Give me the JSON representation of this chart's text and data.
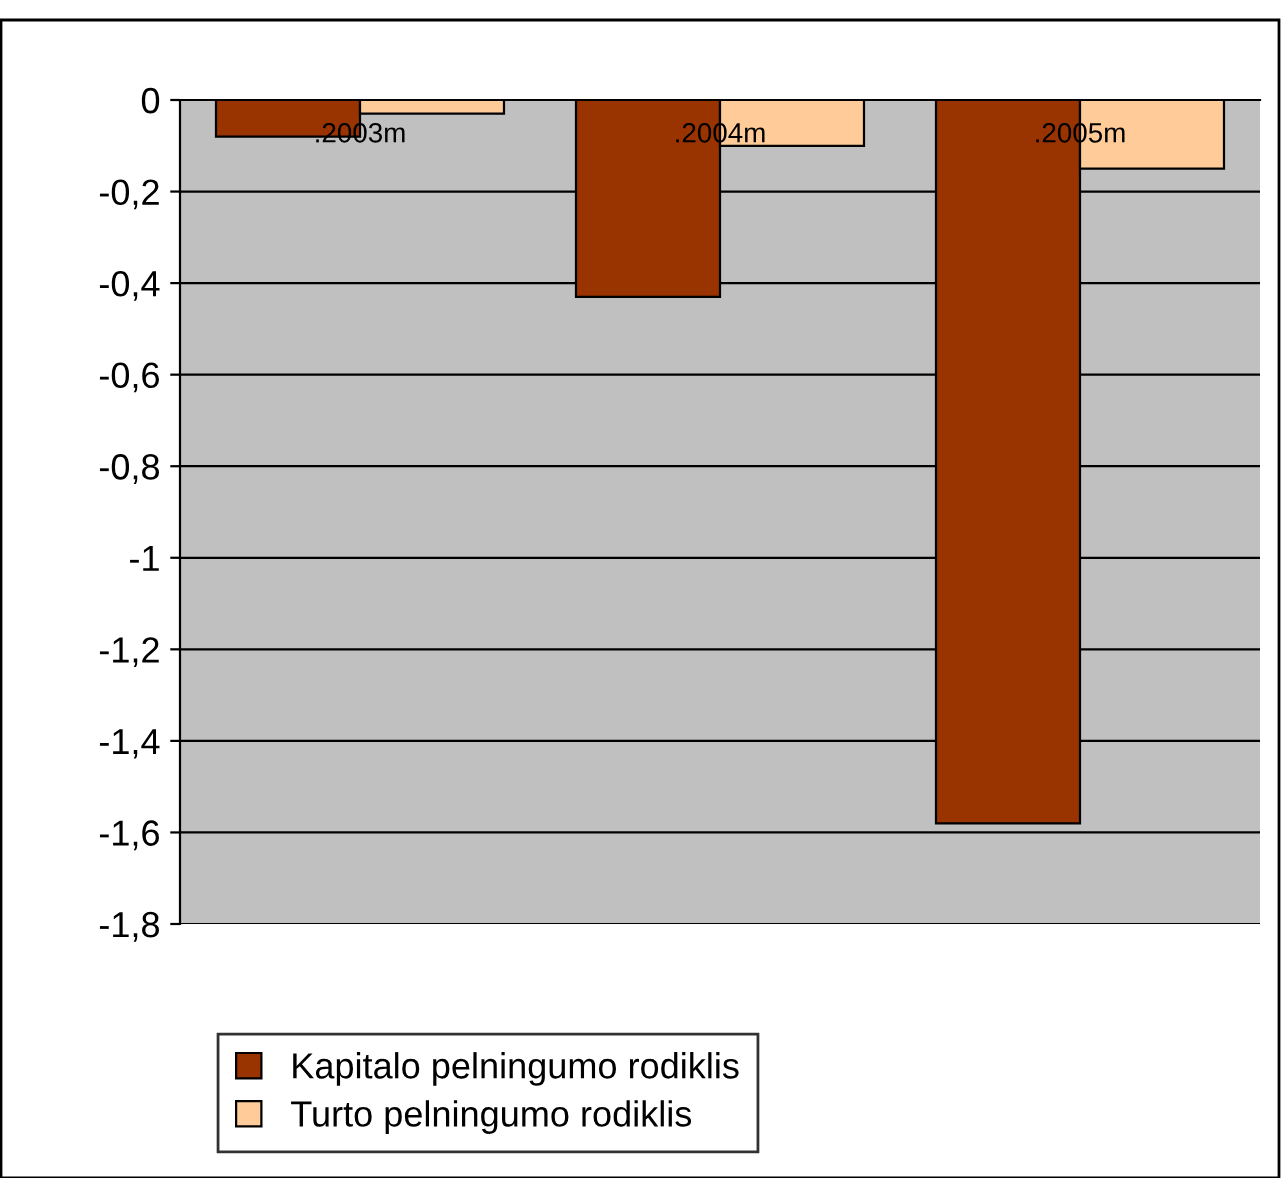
{
  "chart_data": {
    "type": "bar",
    "categories": [
      ".2003m",
      ".2004m",
      ".2005m"
    ],
    "series": [
      {
        "name": "Kapitalo pelningumo rodiklis",
        "color": "#993300",
        "values": [
          -0.08,
          -0.43,
          -1.58
        ]
      },
      {
        "name": "Turto pelningumo rodiklis",
        "color": "#ffcc99",
        "values": [
          -0.03,
          -0.1,
          -0.15
        ]
      }
    ],
    "ylim": [
      -1.8,
      0
    ],
    "yticks": [
      0,
      {
        "value": -0.2,
        "label": "-0,2"
      },
      {
        "value": -0.4,
        "label": "-0,4"
      },
      {
        "value": -0.6,
        "label": "-0,6"
      },
      {
        "value": -0.8,
        "label": "-0,8"
      },
      -1,
      {
        "value": -1.2,
        "label": "-1,2"
      },
      {
        "value": -1.4,
        "label": "-1,4"
      },
      {
        "value": -1.6,
        "label": "-1,6"
      },
      {
        "value": -1.8,
        "label": "-1,8"
      }
    ],
    "grid": "y",
    "legend": "bottom"
  }
}
